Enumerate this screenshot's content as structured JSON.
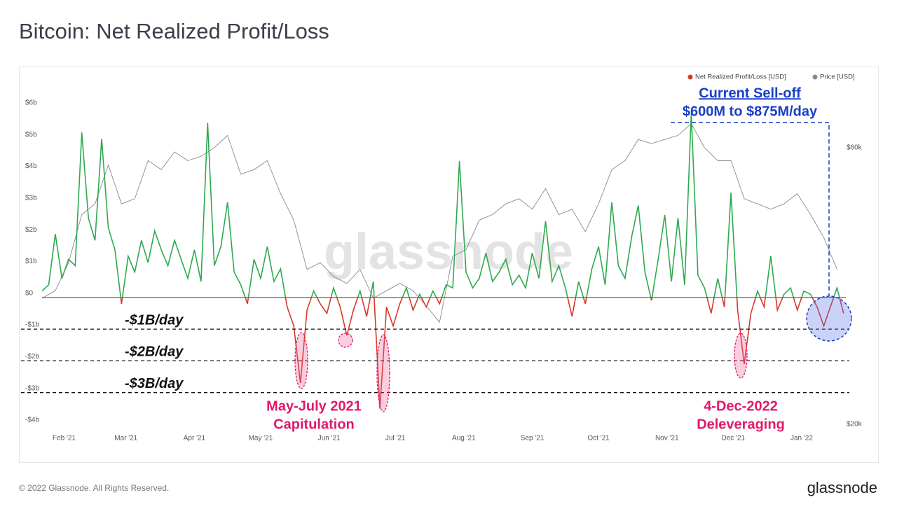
{
  "title": "Bitcoin: Net Realized Profit/Loss",
  "footer": "© 2022 Glassnode. All Rights Reserved.",
  "logo": "glassnode",
  "watermark": "glassnode",
  "chart_data": {
    "type": "line",
    "series": [
      {
        "name": "Net Realized Profit/Loss [USD]",
        "color": "#2eaa4f",
        "negative_color": "#d63a2a",
        "x": [
          0,
          3,
          6,
          9,
          12,
          15,
          18,
          21,
          24,
          27,
          30,
          33,
          36,
          39,
          42,
          45,
          48,
          51,
          54,
          57,
          60,
          63,
          66,
          69,
          72,
          75,
          78,
          81,
          84,
          87,
          90,
          93,
          96,
          99,
          102,
          105,
          108,
          111,
          114,
          117,
          120,
          123,
          126,
          129,
          132,
          135,
          138,
          141,
          144,
          147,
          150,
          153,
          156,
          159,
          162,
          165,
          168,
          171,
          174,
          177,
          180,
          183,
          186,
          189,
          192,
          195,
          198,
          201,
          204,
          207,
          210,
          213,
          216,
          219,
          222,
          225,
          228,
          231,
          234,
          237,
          240,
          243,
          246,
          249,
          252,
          255,
          258,
          261,
          264,
          267,
          270,
          273,
          276,
          279,
          282,
          285,
          288,
          291,
          294,
          297,
          300,
          303,
          306,
          309,
          312,
          315,
          318,
          321,
          324,
          327,
          330,
          333,
          336,
          339,
          342,
          345,
          348,
          351,
          354,
          357,
          360,
          363
        ],
        "values": [
          0.2,
          0.4,
          2.0,
          0.6,
          1.2,
          1.0,
          5.2,
          2.5,
          1.8,
          5.0,
          2.2,
          1.5,
          -0.2,
          1.3,
          0.8,
          1.8,
          1.1,
          2.1,
          1.5,
          1.0,
          1.8,
          1.2,
          0.6,
          1.5,
          0.5,
          5.5,
          1.0,
          1.6,
          3.0,
          0.8,
          0.4,
          -0.2,
          1.2,
          0.6,
          1.6,
          0.5,
          0.9,
          -0.3,
          -0.9,
          -2.7,
          -0.4,
          0.2,
          -0.2,
          -0.5,
          0.3,
          -0.3,
          -1.2,
          -0.4,
          0.2,
          -0.6,
          0.5,
          -3.5,
          -0.3,
          -0.9,
          -0.2,
          0.3,
          -0.4,
          0.1,
          -0.3,
          0.2,
          -0.2,
          0.4,
          0.3,
          4.3,
          0.8,
          0.3,
          0.6,
          1.4,
          0.5,
          0.8,
          1.2,
          0.4,
          0.7,
          0.3,
          1.4,
          0.6,
          2.4,
          0.5,
          1.0,
          0.3,
          -0.6,
          0.5,
          -0.2,
          0.9,
          1.6,
          0.4,
          3.0,
          1.0,
          0.6,
          1.9,
          2.9,
          0.8,
          -0.1,
          1.2,
          2.6,
          0.5,
          2.5,
          0.4,
          5.8,
          0.7,
          0.3,
          -0.5,
          0.6,
          -0.3,
          3.3,
          -0.4,
          -2.1,
          -0.5,
          0.2,
          -0.3,
          1.3,
          -0.4,
          0.1,
          0.3,
          -0.4,
          0.2,
          0.1,
          -0.3,
          -0.9,
          -0.3,
          0.3,
          -0.5
        ]
      },
      {
        "name": "Price [USD]",
        "color": "#8a8a8a",
        "axis": "y2",
        "x": [
          0,
          6,
          12,
          18,
          24,
          30,
          36,
          42,
          48,
          54,
          60,
          66,
          72,
          78,
          84,
          90,
          96,
          102,
          108,
          114,
          120,
          126,
          132,
          138,
          144,
          150,
          156,
          162,
          168,
          174,
          180,
          186,
          192,
          198,
          204,
          210,
          216,
          222,
          228,
          234,
          240,
          246,
          252,
          258,
          264,
          270,
          276,
          282,
          288,
          294,
          300,
          306,
          312,
          318,
          324,
          330,
          336,
          342,
          348,
          354,
          360
        ],
        "values": [
          33000,
          34000,
          38000,
          46000,
          48000,
          56000,
          48000,
          49000,
          57000,
          55000,
          59000,
          57000,
          58000,
          60000,
          63000,
          54000,
          55000,
          57000,
          50000,
          45000,
          37000,
          38000,
          36000,
          35000,
          37000,
          33000,
          34000,
          35000,
          34000,
          32000,
          30000,
          39000,
          40000,
          45000,
          46000,
          48000,
          49000,
          47000,
          51000,
          46000,
          47000,
          43000,
          48000,
          55000,
          57000,
          62000,
          61000,
          62000,
          63000,
          66000,
          60000,
          57000,
          57000,
          49000,
          48000,
          47000,
          48000,
          50000,
          46000,
          42000,
          37000
        ]
      }
    ],
    "xlim": [
      0,
      364
    ],
    "xticks": [
      {
        "value": 10,
        "label": "Feb '21"
      },
      {
        "value": 38,
        "label": "Mar '21"
      },
      {
        "value": 69,
        "label": "Apr '21"
      },
      {
        "value": 99,
        "label": "May '21"
      },
      {
        "value": 130,
        "label": "Jun '21"
      },
      {
        "value": 160,
        "label": "Jul '21"
      },
      {
        "value": 191,
        "label": "Aug '21"
      },
      {
        "value": 222,
        "label": "Sep '21"
      },
      {
        "value": 252,
        "label": "Oct '21"
      },
      {
        "value": 283,
        "label": "Nov '21"
      },
      {
        "value": 313,
        "label": "Dec '21"
      },
      {
        "value": 344,
        "label": "Jan '22"
      }
    ],
    "ylim": [
      -4,
      6
    ],
    "yticks": [
      {
        "value": 6,
        "label": "$6b"
      },
      {
        "value": 5,
        "label": "$5b"
      },
      {
        "value": 4,
        "label": "$4b"
      },
      {
        "value": 3,
        "label": "$3b"
      },
      {
        "value": 2,
        "label": "$2b"
      },
      {
        "value": 1,
        "label": "$1b"
      },
      {
        "value": 0,
        "label": "$0"
      },
      {
        "value": -1,
        "label": "-$1b"
      },
      {
        "value": -2,
        "label": "-$2b"
      },
      {
        "value": -3,
        "label": "-$3b"
      },
      {
        "value": -4,
        "label": "-$4b"
      }
    ],
    "y2lim": [
      20000,
      70500
    ],
    "y2ticks": [
      {
        "value": 20000,
        "label": "$20k"
      },
      {
        "value": 60000,
        "label": "$60k"
      }
    ],
    "y2log": true,
    "grid": false,
    "legend": "top-right",
    "levels": [
      {
        "value": -1,
        "label": "-$1B/day"
      },
      {
        "value": -2,
        "label": "-$2B/day"
      },
      {
        "value": -3,
        "label": "-$3B/day"
      }
    ],
    "annotations": [
      {
        "lines": [
          "May-July 2021",
          "Capitulation"
        ],
        "color": "#e0186c"
      },
      {
        "lines": [
          "4-Dec-2022",
          "Deleveraging"
        ],
        "color": "#e0186c"
      },
      {
        "lines": [
          "Current Sell-off",
          "$600M to $875M/day"
        ],
        "color": "#1a3fc4"
      }
    ]
  }
}
